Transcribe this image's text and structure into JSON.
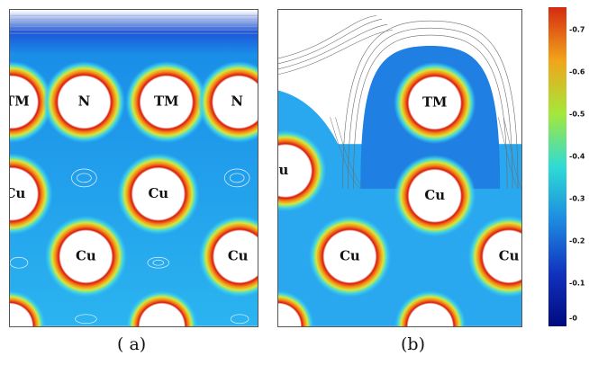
{
  "panels": [
    {
      "id": "a",
      "caption": "( a)",
      "atoms": [
        {
          "label": "TM"
        },
        {
          "label": "N"
        },
        {
          "label": "TM"
        },
        {
          "label": "N"
        },
        {
          "label": "Cu"
        },
        {
          "label": "Cu"
        },
        {
          "label": "Cu"
        },
        {
          "label": "Cu"
        }
      ]
    },
    {
      "id": "b",
      "caption": "(b)",
      "atoms": [
        {
          "label": "TM"
        },
        {
          "label": "u"
        },
        {
          "label": "Cu"
        },
        {
          "label": "Cu"
        },
        {
          "label": "Cu"
        }
      ]
    }
  ],
  "colorbar": {
    "ticks": [
      "0.7",
      "0.6",
      "0.5",
      "0.4",
      "0.3",
      "0.2",
      "0.1",
      "0"
    ],
    "colors": [
      "#d42a10",
      "#f2a41b",
      "#a4e83a",
      "#2fdbd6",
      "#1d8be0",
      "#1133bf",
      "#000a7f"
    ]
  }
}
